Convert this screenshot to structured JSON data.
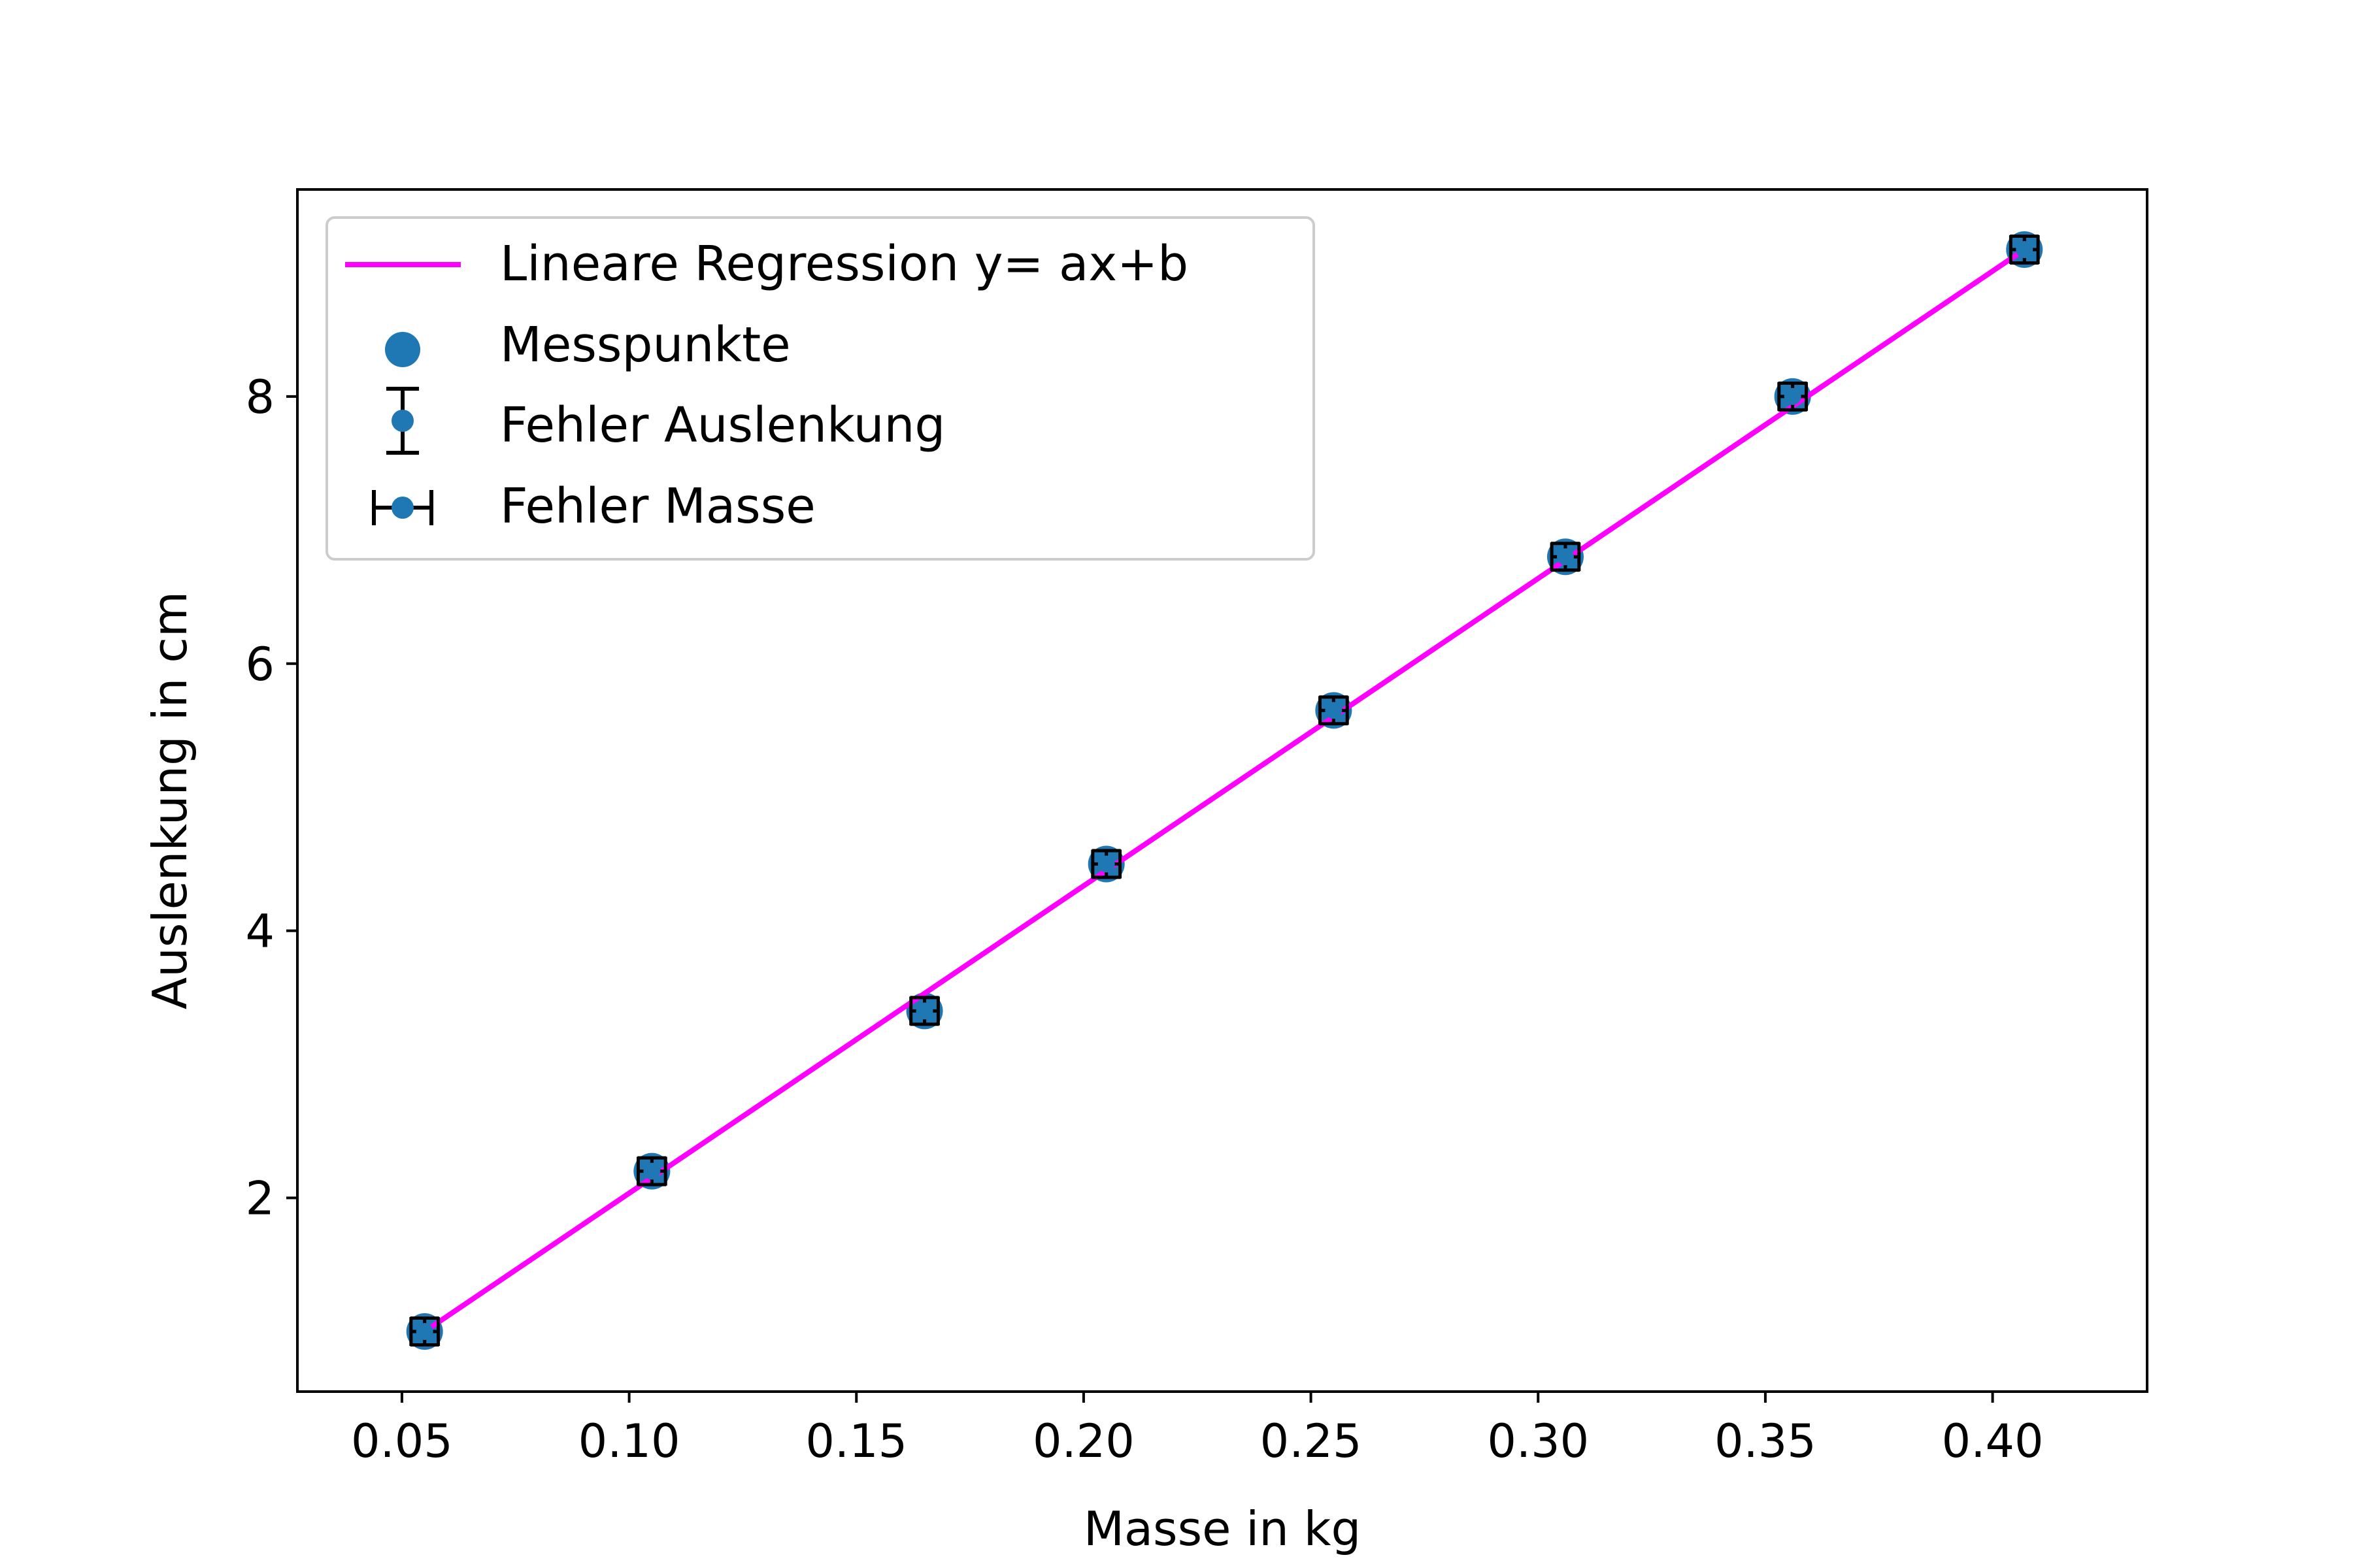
{
  "chart_data": {
    "type": "scatter",
    "title": "",
    "xlabel": "Masse in kg",
    "ylabel": "Auslenkung in cm",
    "xlim": [
      0.027,
      0.434
    ],
    "ylim": [
      0.55,
      9.55
    ],
    "x_ticks": [
      0.05,
      0.1,
      0.15,
      0.2,
      0.25,
      0.3,
      0.35,
      0.4
    ],
    "x_tick_labels": [
      "0.05",
      "0.10",
      "0.15",
      "0.20",
      "0.25",
      "0.30",
      "0.35",
      "0.40"
    ],
    "y_ticks": [
      2,
      4,
      6,
      8
    ],
    "y_tick_labels": [
      "2",
      "4",
      "6",
      "8"
    ],
    "grid": false,
    "legend_position": "top-left",
    "colors": {
      "regression": "#ff00ff",
      "points": "#1f77b4",
      "errorbars": "#000000"
    },
    "legend": [
      {
        "label": "Lineare Regression y= ax+b",
        "marker": "line"
      },
      {
        "label": "Messpunkte",
        "marker": "dot"
      },
      {
        "label": "Fehler Auslenkung",
        "marker": "vertical-errorbar"
      },
      {
        "label": "Fehler Masse",
        "marker": "horizontal-errorbar"
      }
    ],
    "regression": {
      "x": [
        0.055,
        0.407
      ],
      "y": [
        1.0,
        9.1
      ]
    },
    "series": [
      {
        "x": [
          0.055,
          0.105,
          0.165,
          0.205,
          0.255,
          0.306,
          0.356,
          0.407
        ],
        "y": [
          1.0,
          2.2,
          3.4,
          4.5,
          5.65,
          6.8,
          8.0,
          9.1
        ],
        "x_err": 0.003,
        "y_err": 0.1
      }
    ]
  }
}
